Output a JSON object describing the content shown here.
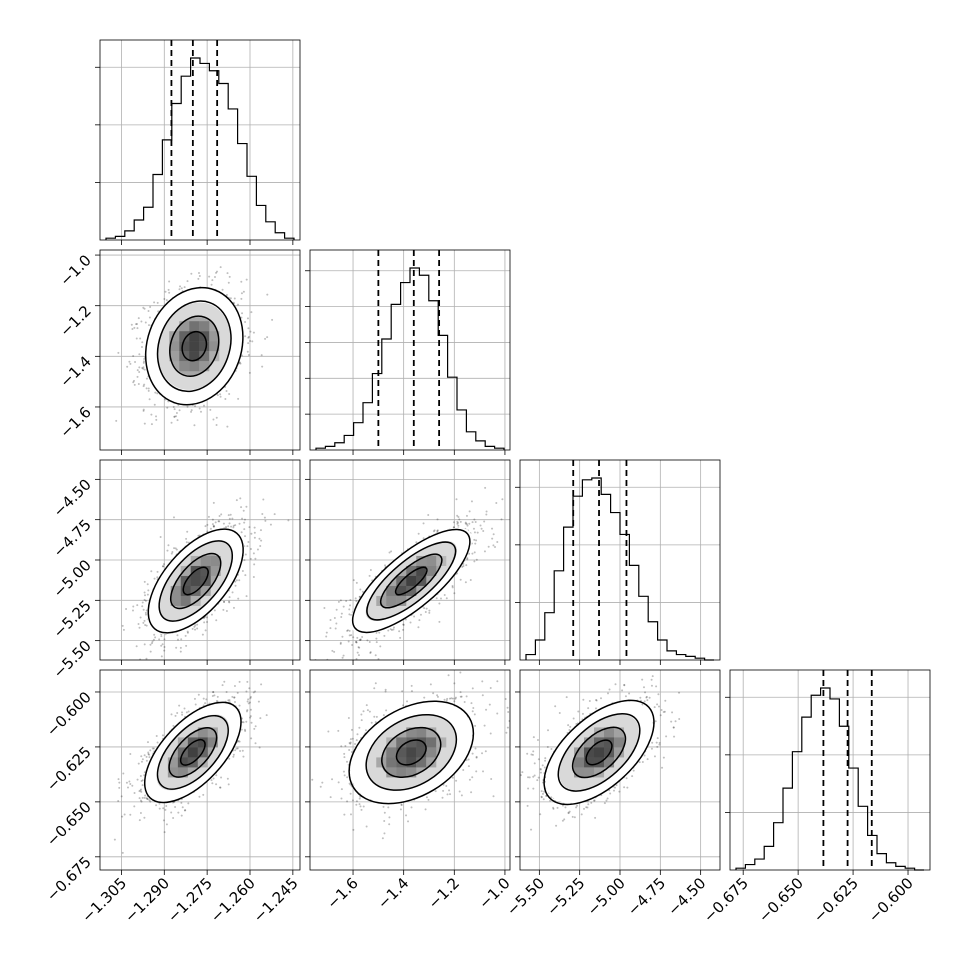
{
  "chart_data": {
    "type": "corner",
    "parameters": [
      {
        "index": 0,
        "range": [
          -1.3125,
          -1.2425
        ],
        "ticks": [
          -1.305,
          -1.29,
          -1.275,
          -1.26,
          -1.245
        ],
        "tick_labels": [
          "−1.305",
          "−1.290",
          "−1.275",
          "−1.260",
          "−1.245"
        ],
        "median": -1.28,
        "q16": -1.2875,
        "q84": -1.2715
      },
      {
        "index": 1,
        "range": [
          -1.77,
          -0.98
        ],
        "ticks": [
          -1.6,
          -1.4,
          -1.2,
          -1.0
        ],
        "tick_labels": [
          "−1.6",
          "−1.4",
          "−1.2",
          "−1.0"
        ],
        "median": -1.36,
        "q16": -1.5,
        "q84": -1.26
      },
      {
        "index": 2,
        "range": [
          -5.62,
          -4.38
        ],
        "ticks": [
          -5.5,
          -5.25,
          -5.0,
          -4.75,
          -4.5
        ],
        "tick_labels": [
          "−5.50",
          "−5.25",
          "−5.00",
          "−4.75",
          "−4.50"
        ],
        "median": -5.13,
        "q16": -5.29,
        "q84": -4.96
      },
      {
        "index": 3,
        "range": [
          -0.681,
          -0.59
        ],
        "ticks": [
          -0.675,
          -0.65,
          -0.625,
          -0.6
        ],
        "tick_labels": [
          "−0.675",
          "−0.650",
          "−0.625",
          "−0.600"
        ],
        "median": -0.6275,
        "q16": -0.6385,
        "q84": -0.6165
      }
    ],
    "y_axis_ticks": {
      "1": {
        "ticks": [
          -1.6,
          -1.4,
          -1.2,
          -1.0
        ],
        "tick_labels": [
          "−1.6",
          "−1.4",
          "−1.2",
          "−1.0"
        ]
      },
      "2": {
        "ticks": [
          -5.5,
          -5.25,
          -5.0,
          -4.75,
          -4.5
        ],
        "tick_labels": [
          "−5.50",
          "−5.25",
          "−5.00",
          "−4.75",
          "−4.50"
        ]
      },
      "3": {
        "ticks": [
          -0.675,
          -0.65,
          -0.625,
          -0.6
        ],
        "tick_labels": [
          "−0.675",
          "−0.650",
          "−0.625",
          "−0.600"
        ]
      }
    },
    "histograms": [
      {
        "param": 0,
        "bins": 20,
        "counts": [
          0.01,
          0.02,
          0.05,
          0.11,
          0.18,
          0.36,
          0.55,
          0.75,
          0.9,
          1.0,
          0.97,
          0.93,
          0.86,
          0.72,
          0.53,
          0.35,
          0.19,
          0.1,
          0.04,
          0.01
        ],
        "hist_ticks": 3
      },
      {
        "param": 1,
        "bins": 20,
        "counts": [
          0.01,
          0.02,
          0.04,
          0.08,
          0.15,
          0.26,
          0.42,
          0.61,
          0.8,
          0.92,
          1.0,
          0.96,
          0.82,
          0.63,
          0.4,
          0.22,
          0.1,
          0.05,
          0.02,
          0.01
        ],
        "hist_ticks": 5
      },
      {
        "param": 2,
        "bins": 20,
        "counts": [
          0.03,
          0.11,
          0.26,
          0.49,
          0.73,
          0.9,
          0.99,
          1.0,
          0.91,
          0.81,
          0.69,
          0.52,
          0.35,
          0.21,
          0.11,
          0.05,
          0.03,
          0.02,
          0.01,
          0.0
        ],
        "hist_ticks": 3
      },
      {
        "param": 3,
        "bins": 20,
        "counts": [
          0.01,
          0.03,
          0.06,
          0.13,
          0.26,
          0.45,
          0.65,
          0.84,
          0.96,
          1.0,
          0.94,
          0.79,
          0.56,
          0.35,
          0.19,
          0.09,
          0.04,
          0.02,
          0.01,
          0.0
        ],
        "hist_ticks": 3
      }
    ],
    "pairs": [
      {
        "x_param": 0,
        "y_param": 1,
        "mean": [
          -1.2795,
          -1.36
        ],
        "std": [
          0.0085,
          0.115
        ],
        "rho": 0.15
      },
      {
        "x_param": 0,
        "y_param": 2,
        "mean": [
          -1.279,
          -5.13
        ],
        "std": [
          0.0085,
          0.165
        ],
        "rho": 0.62
      },
      {
        "x_param": 1,
        "y_param": 2,
        "mean": [
          -1.37,
          -5.13
        ],
        "std": [
          0.12,
          0.165
        ],
        "rho": 0.78
      },
      {
        "x_param": 0,
        "y_param": 3,
        "mean": [
          -1.28,
          -0.6275
        ],
        "std": [
          0.0085,
          0.0115
        ],
        "rho": 0.62
      },
      {
        "x_param": 1,
        "y_param": 3,
        "mean": [
          -1.37,
          -0.6275
        ],
        "std": [
          0.12,
          0.0115
        ],
        "rho": 0.35
      },
      {
        "x_param": 2,
        "y_param": 3,
        "mean": [
          -5.13,
          -0.6275
        ],
        "std": [
          0.165,
          0.0115
        ],
        "rho": 0.55
      }
    ],
    "contour_levels_sigma": [
      0.5,
      1.0,
      1.5,
      2.0
    ],
    "grid": true,
    "colors": {
      "line": "#000000",
      "grid": "#b0b0b0",
      "points": "#000000"
    }
  }
}
